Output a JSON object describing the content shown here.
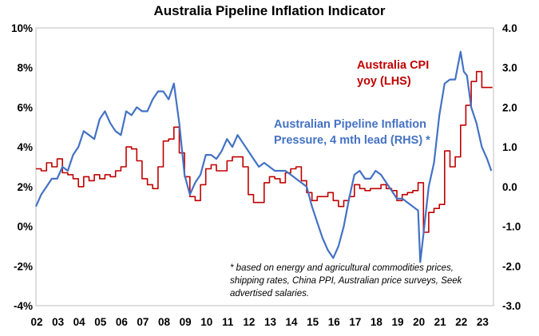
{
  "chart_data": {
    "type": "line",
    "title": "Australia Pipeline Inflation Indicator",
    "x_tick_labels": [
      "02",
      "03",
      "04",
      "05",
      "06",
      "07",
      "08",
      "09",
      "10",
      "11",
      "12",
      "13",
      "14",
      "15",
      "16",
      "17",
      "18",
      "19",
      "20",
      "21",
      "22",
      "23"
    ],
    "xlim": [
      2002.0,
      2023.55
    ],
    "left_axis": {
      "tick_labels": [
        "10%",
        "8%",
        "6%",
        "4%",
        "2%",
        "0%",
        "-2%",
        "-4%"
      ],
      "tick_values": [
        10,
        8,
        6,
        4,
        2,
        0,
        -2,
        -4
      ],
      "ylim": [
        -4,
        10
      ]
    },
    "right_axis": {
      "tick_labels": [
        "4.0",
        "3.0",
        "2.0",
        "1.0",
        "0.0",
        "-1.0",
        "-2.0",
        "-3.0"
      ],
      "tick_values": [
        4,
        3,
        2,
        1,
        0,
        -1,
        -2,
        -3
      ],
      "ylim": [
        -3.0,
        4.0
      ]
    },
    "grid": false,
    "series": [
      {
        "name": "Australia CPI yoy (LHS)",
        "label_lines": [
          "Australia CPI",
          "yoy (LHS)"
        ],
        "axis": "left",
        "color": "#c00000",
        "step": true,
        "x": [
          2002.0,
          2002.25,
          2002.5,
          2002.75,
          2003.0,
          2003.25,
          2003.5,
          2003.75,
          2004.0,
          2004.25,
          2004.5,
          2004.75,
          2005.0,
          2005.25,
          2005.5,
          2005.75,
          2006.0,
          2006.25,
          2006.5,
          2006.75,
          2007.0,
          2007.25,
          2007.5,
          2007.75,
          2008.0,
          2008.25,
          2008.5,
          2008.75,
          2009.0,
          2009.25,
          2009.5,
          2009.75,
          2010.0,
          2010.25,
          2010.5,
          2010.75,
          2011.0,
          2011.25,
          2011.5,
          2011.75,
          2012.0,
          2012.25,
          2012.5,
          2012.75,
          2013.0,
          2013.25,
          2013.5,
          2013.75,
          2014.0,
          2014.25,
          2014.5,
          2014.75,
          2015.0,
          2015.25,
          2015.5,
          2015.75,
          2016.0,
          2016.25,
          2016.5,
          2016.75,
          2017.0,
          2017.25,
          2017.5,
          2017.75,
          2018.0,
          2018.25,
          2018.5,
          2018.75,
          2019.0,
          2019.25,
          2019.5,
          2019.75,
          2020.0,
          2020.25,
          2020.5,
          2020.75,
          2021.0,
          2021.25,
          2021.5,
          2021.75,
          2022.0,
          2022.25,
          2022.5,
          2022.75,
          2023.0,
          2023.25
        ],
        "values": [
          2.9,
          2.8,
          3.2,
          3.0,
          3.4,
          2.7,
          2.6,
          2.4,
          2.0,
          2.5,
          2.3,
          2.6,
          2.4,
          2.6,
          2.5,
          2.8,
          3.0,
          4.0,
          3.9,
          3.3,
          2.4,
          2.1,
          1.9,
          3.0,
          4.3,
          4.4,
          5.0,
          3.7,
          2.5,
          1.5,
          1.3,
          2.1,
          2.9,
          3.1,
          2.8,
          2.8,
          3.3,
          3.5,
          3.5,
          3.0,
          1.6,
          1.2,
          1.2,
          2.2,
          2.5,
          2.4,
          2.2,
          2.7,
          2.9,
          3.0,
          2.3,
          1.7,
          1.3,
          1.5,
          1.5,
          1.7,
          1.3,
          1.0,
          1.3,
          1.5,
          2.1,
          1.9,
          1.8,
          1.9,
          1.9,
          2.1,
          1.9,
          1.8,
          1.3,
          1.6,
          1.7,
          1.8,
          2.2,
          -0.3,
          0.7,
          0.9,
          1.1,
          3.8,
          3.0,
          3.5,
          5.1,
          6.1,
          7.3,
          7.8,
          7.0,
          7.0
        ]
      },
      {
        "name": "Australian Pipeline Inflation Pressure, 4 mth lead (RHS) *",
        "label_lines": [
          "Australian Pipeline Inflation",
          "Pressure, 4 mth lead (RHS) *"
        ],
        "axis": "right",
        "color": "#4472c4",
        "step": false,
        "x": [
          2002.0,
          2002.25,
          2002.5,
          2002.75,
          2003.0,
          2003.25,
          2003.5,
          2003.75,
          2004.0,
          2004.25,
          2004.5,
          2004.75,
          2005.0,
          2005.25,
          2005.5,
          2005.75,
          2006.0,
          2006.25,
          2006.5,
          2006.75,
          2007.0,
          2007.25,
          2007.5,
          2007.75,
          2008.0,
          2008.25,
          2008.5,
          2008.75,
          2009.0,
          2009.25,
          2009.5,
          2009.75,
          2010.0,
          2010.25,
          2010.5,
          2010.75,
          2011.0,
          2011.25,
          2011.5,
          2011.75,
          2012.0,
          2012.25,
          2012.5,
          2012.75,
          2013.0,
          2013.25,
          2013.5,
          2013.75,
          2014.0,
          2014.25,
          2014.5,
          2014.75,
          2015.0,
          2015.25,
          2015.5,
          2015.75,
          2016.0,
          2016.25,
          2016.5,
          2016.75,
          2017.0,
          2017.25,
          2017.5,
          2017.75,
          2018.0,
          2018.25,
          2018.5,
          2018.75,
          2019.0,
          2019.25,
          2019.5,
          2019.75,
          2020.0,
          2020.1,
          2020.25,
          2020.5,
          2020.75,
          2021.0,
          2021.25,
          2021.5,
          2021.75,
          2022.0,
          2022.15,
          2022.3,
          2022.5,
          2022.75,
          2023.0,
          2023.25,
          2023.45
        ],
        "values": [
          -0.5,
          -0.2,
          0.0,
          0.2,
          0.2,
          0.5,
          0.4,
          0.8,
          1.0,
          1.4,
          1.3,
          1.2,
          1.7,
          1.9,
          1.6,
          1.4,
          1.3,
          1.9,
          1.8,
          2.0,
          1.9,
          1.9,
          2.2,
          2.4,
          2.4,
          2.2,
          2.6,
          1.6,
          0.3,
          -0.2,
          0.1,
          0.3,
          0.8,
          0.8,
          0.7,
          0.9,
          1.2,
          1.0,
          1.3,
          1.1,
          0.9,
          0.7,
          0.5,
          0.6,
          0.5,
          0.4,
          0.4,
          0.4,
          0.3,
          0.2,
          0.1,
          0.0,
          -0.5,
          -0.9,
          -1.3,
          -1.6,
          -1.8,
          -1.5,
          -1.0,
          -0.3,
          0.3,
          0.4,
          0.2,
          0.2,
          0.4,
          0.3,
          0.1,
          -0.1,
          -0.3,
          -0.3,
          -0.4,
          -0.5,
          -0.6,
          -1.9,
          -1.2,
          0.0,
          0.6,
          1.8,
          2.6,
          2.7,
          2.7,
          3.4,
          2.9,
          2.8,
          2.0,
          1.6,
          1.0,
          0.7,
          0.4
        ]
      }
    ],
    "annotation_lines": [
      "* based on energy and agricultural commodities prices,",
      "shipping rates, China PPI, Australian price surveys, Seek",
      "advertised salaries."
    ]
  }
}
